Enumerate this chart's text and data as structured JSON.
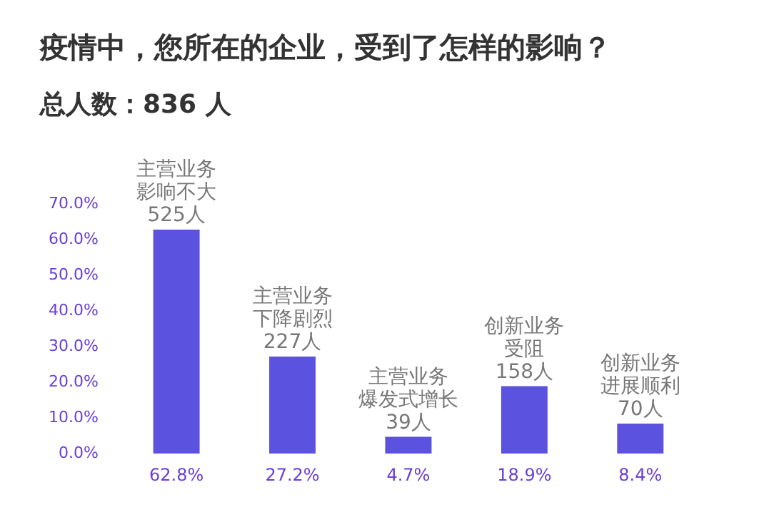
{
  "chart_data": {
    "type": "bar",
    "title": "疫情中，您所在的企业，受到了怎样的影响？",
    "subtitle": "总人数：836 人",
    "categories": [
      null,
      null,
      null,
      null,
      null
    ],
    "values": [
      62.8,
      27.2,
      4.7,
      18.9,
      8.4
    ],
    "value_labels": [
      "62.8%",
      "27.2%",
      "4.7%",
      "18.9%",
      "8.4%"
    ],
    "color": "#5b53e0",
    "ylim": [
      0,
      70
    ],
    "yticks": [
      {
        "value": 0,
        "label": "0.0%"
      },
      {
        "value": 10,
        "label": "10.0%"
      },
      {
        "value": 20,
        "label": "20.0%"
      },
      {
        "value": 30,
        "label": "30.0%"
      },
      {
        "value": 40,
        "label": "40.0%"
      },
      {
        "value": 50,
        "label": "50.0%"
      },
      {
        "value": 60,
        "label": "60.0%"
      },
      {
        "value": 70,
        "label": "70.0%"
      }
    ],
    "grid": false,
    "legend": false,
    "annotations": [
      "主营业务影响不大525人",
      "主营业务下降剧烈227人",
      "主营业务爆发式增长39人",
      "创新业务受阻158人",
      "创新业务进展顺利70人"
    ]
  }
}
